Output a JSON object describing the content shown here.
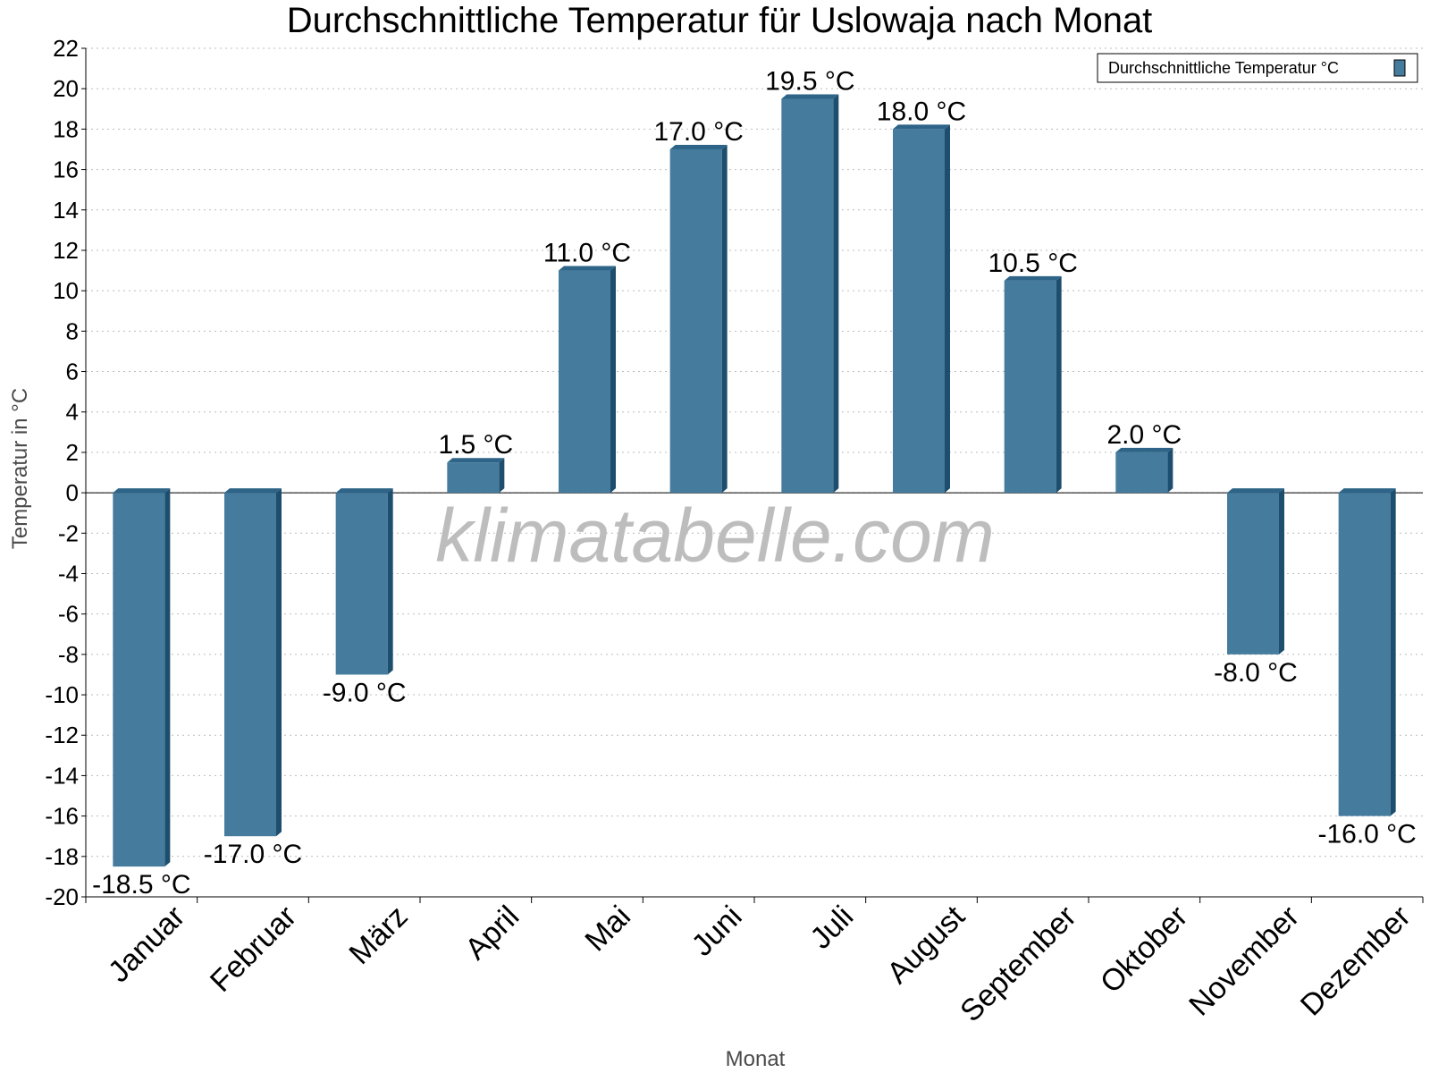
{
  "chart_data": {
    "type": "bar",
    "title": "Durchschnittliche Temperatur für Uslowaja nach Monat",
    "xlabel": "Monat",
    "ylabel": "Temperatur in °C",
    "ylim": [
      -20,
      22
    ],
    "yticks": [
      22,
      20,
      18,
      16,
      14,
      12,
      10,
      8,
      6,
      4,
      2,
      0,
      -2,
      -4,
      -6,
      -8,
      -10,
      -12,
      -14,
      -16,
      -18,
      -20
    ],
    "grid": true,
    "legend_position": "top-right",
    "categories": [
      "Januar",
      "Februar",
      "März",
      "April",
      "Mai",
      "Juni",
      "Juli",
      "August",
      "September",
      "Oktober",
      "November",
      "Dezember"
    ],
    "series": [
      {
        "name": "Durchschnittliche Temperatur °C",
        "values": [
          -18.5,
          -17.0,
          -9.0,
          1.5,
          11.0,
          17.0,
          19.5,
          18.0,
          10.5,
          2.0,
          -8.0,
          -16.0
        ],
        "labels": [
          "-18.5 °C",
          "-17.0 °C",
          "-9.0 °C",
          "1.5 °C",
          "11.0 °C",
          "17.0 °C",
          "19.5 °C",
          "18.0 °C",
          "10.5 °C",
          "2.0 °C",
          "-8.0 °C",
          "-16.0 °C"
        ]
      }
    ],
    "watermark": "klimatabelle.com",
    "colors": {
      "bar": "#457b9d",
      "bar_dark": "#1d4e6e",
      "bar_top": "#2e6487"
    }
  }
}
